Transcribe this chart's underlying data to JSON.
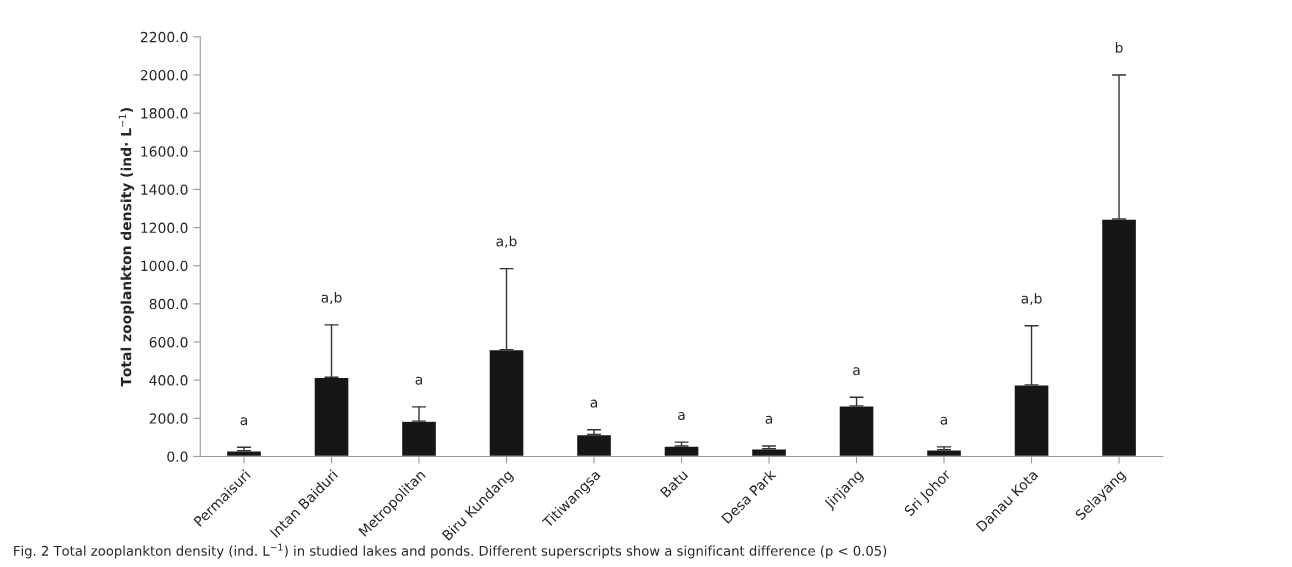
{
  "chart_data": {
    "type": "bar",
    "ylabel": "Total zooplankton density (ind· L$^{−1}$)",
    "categories": [
      "Permaisuri",
      "Intan Baiduri",
      "Metropolitan",
      "Biru Kundang",
      "Titiwangsa",
      "Batu",
      "Desa Park",
      "Jinjang",
      "Sri Johor",
      "Danau Kota",
      "Selayang"
    ],
    "values": [
      30,
      415,
      185,
      560,
      115,
      55,
      40,
      265,
      35,
      375,
      1245
    ],
    "errors": [
      [
        30,
        48
      ],
      [
        415,
        690
      ],
      [
        185,
        260
      ],
      [
        560,
        985
      ],
      [
        115,
        140
      ],
      [
        55,
        75
      ],
      [
        40,
        55
      ],
      [
        265,
        310
      ],
      [
        35,
        50
      ],
      [
        375,
        685
      ],
      [
        1245,
        2000
      ]
    ],
    "color": "#161616",
    "ylim": [
      0,
      2200
    ],
    "yticks": [
      {
        "value": 0,
        "label": "0.0"
      },
      {
        "value": 200,
        "label": "200.0"
      },
      {
        "value": 400,
        "label": "400.0"
      },
      {
        "value": 600,
        "label": "600.0"
      },
      {
        "value": 800,
        "label": "800.0"
      },
      {
        "value": 1000,
        "label": "1000.0"
      },
      {
        "value": 1200,
        "label": "1200.0"
      },
      {
        "value": 1400,
        "label": "1400.0"
      },
      {
        "value": 1600,
        "label": "1600.0"
      },
      {
        "value": 1800,
        "label": "1800.0"
      },
      {
        "value": 2000,
        "label": "2000.0"
      },
      {
        "value": 2200,
        "label": "2200.0"
      }
    ],
    "grid": false,
    "annotations": [
      "a",
      "a,b",
      "a",
      "a,b",
      "a",
      "a",
      "a",
      "a",
      "a",
      "a,b",
      "b",
      "Fig. 2 Total zooplankton density (ind. L$^{−1}$) in studied lakes and ponds. Different superscripts show a significant difference (p < 0.05)"
    ]
  }
}
